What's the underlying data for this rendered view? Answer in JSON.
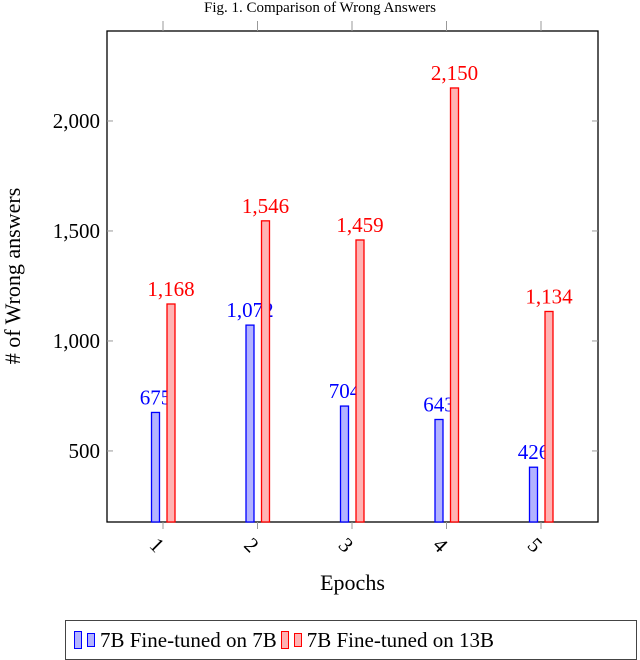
{
  "figure": {
    "caption": "Fig. 1.  Comparison of Wrong Answers"
  },
  "chart_data": {
    "type": "bar",
    "title": "Fig. 1.  Comparison of Wrong Answers",
    "xlabel": "Epochs",
    "ylabel": "# of Wrong answers",
    "categories": [
      "1",
      "2",
      "3",
      "4",
      "5"
    ],
    "series": [
      {
        "name": "7B Fine-tuned on 7B",
        "color": "#0000ff",
        "fill": "#b3b3ff",
        "values": [
          675,
          1072,
          704,
          643,
          426
        ],
        "labels": [
          "675",
          "1,072",
          "704",
          "643",
          "426"
        ]
      },
      {
        "name": "7B Fine-tuned on 13B",
        "color": "#ff0000",
        "fill": "#ffb3b3",
        "values": [
          1168,
          1546,
          1459,
          2150,
          1134
        ],
        "labels": [
          "1,168",
          "1,546",
          "1,459",
          "2,150",
          "1,134"
        ]
      }
    ],
    "yticks": [
      500,
      1000,
      1500,
      2000
    ],
    "ytick_labels": [
      "500",
      "1,000",
      "1,500",
      "2,000"
    ],
    "ylim": [
      177,
      2409
    ],
    "grid": false,
    "legend_position": "below",
    "xtick_rotation": 45
  },
  "legend": {
    "items": [
      {
        "label": "7B Fine-tuned on 7B"
      },
      {
        "label": "7B Fine-tuned on 13B"
      }
    ]
  }
}
